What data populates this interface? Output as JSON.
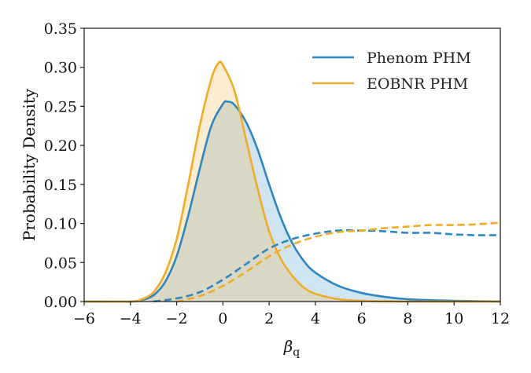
{
  "chart_data": {
    "type": "line",
    "title": "",
    "xlabel": "β_q",
    "ylabel": "Probability Density",
    "xlim": [
      -6,
      12
    ],
    "ylim": [
      0,
      0.35
    ],
    "xticks": [
      -6,
      -4,
      -2,
      0,
      2,
      4,
      6,
      8,
      10,
      12
    ],
    "xtick_labels": [
      "−6",
      "−4",
      "−2",
      "0",
      "2",
      "4",
      "6",
      "8",
      "10",
      "12"
    ],
    "yticks": [
      0.0,
      0.05,
      0.1,
      0.15,
      0.2,
      0.25,
      0.3,
      0.35
    ],
    "ytick_labels": [
      "0.00",
      "0.05",
      "0.10",
      "0.15",
      "0.20",
      "0.25",
      "0.30",
      "0.35"
    ],
    "grid": false,
    "legend_position": "upper right",
    "legend": [
      {
        "label": "Phenom PHM",
        "color": "#2e86c1"
      },
      {
        "label": "EOBNR PHM",
        "color": "#f0ac28"
      }
    ],
    "series": [
      {
        "name": "Phenom PHM",
        "style": "solid-filled",
        "color": "#2e86c1",
        "fill": "#c8e0ef",
        "x": [
          -6,
          -4,
          -3.5,
          -3,
          -2.5,
          -2,
          -1.5,
          -1,
          -0.5,
          0,
          0.2,
          0.5,
          1,
          1.5,
          2,
          2.5,
          3,
          3.5,
          4,
          5,
          6,
          7,
          8,
          10,
          12
        ],
        "y": [
          0,
          0.0,
          0.002,
          0.008,
          0.025,
          0.058,
          0.11,
          0.17,
          0.225,
          0.253,
          0.256,
          0.252,
          0.23,
          0.195,
          0.15,
          0.108,
          0.075,
          0.052,
          0.037,
          0.02,
          0.011,
          0.006,
          0.003,
          0.001,
          0.0
        ]
      },
      {
        "name": "EOBNR PHM",
        "style": "solid-filled",
        "color": "#f0ac28",
        "fill": "#fbebd0",
        "x": [
          -6,
          -4,
          -3.5,
          -3,
          -2.5,
          -2,
          -1.5,
          -1,
          -0.5,
          -0.2,
          0,
          0.5,
          1,
          1.5,
          2,
          2.5,
          3,
          3.5,
          4,
          5,
          6,
          8,
          12
        ],
        "y": [
          0,
          0.0,
          0.003,
          0.012,
          0.036,
          0.08,
          0.15,
          0.225,
          0.285,
          0.305,
          0.303,
          0.27,
          0.208,
          0.145,
          0.09,
          0.055,
          0.033,
          0.018,
          0.01,
          0.003,
          0.001,
          0.0,
          0.0
        ]
      },
      {
        "name": "Phenom PHM (dashed)",
        "style": "dashed",
        "color": "#2e86c1",
        "x": [
          -3,
          -2,
          -1,
          0,
          1,
          2,
          3,
          4,
          5,
          6,
          7,
          8,
          9,
          10,
          11,
          12
        ],
        "y": [
          0.0,
          0.004,
          0.012,
          0.028,
          0.048,
          0.068,
          0.08,
          0.087,
          0.091,
          0.091,
          0.09,
          0.088,
          0.088,
          0.086,
          0.085,
          0.085
        ]
      },
      {
        "name": "EOBNR PHM (dashed)",
        "style": "dashed",
        "color": "#f0ac28",
        "x": [
          -2,
          -1,
          0,
          1,
          2,
          3,
          4,
          5,
          6,
          7,
          8,
          9,
          10,
          11,
          12
        ],
        "y": [
          0.0,
          0.007,
          0.02,
          0.038,
          0.058,
          0.073,
          0.083,
          0.089,
          0.091,
          0.094,
          0.096,
          0.098,
          0.098,
          0.099,
          0.101
        ]
      }
    ]
  }
}
